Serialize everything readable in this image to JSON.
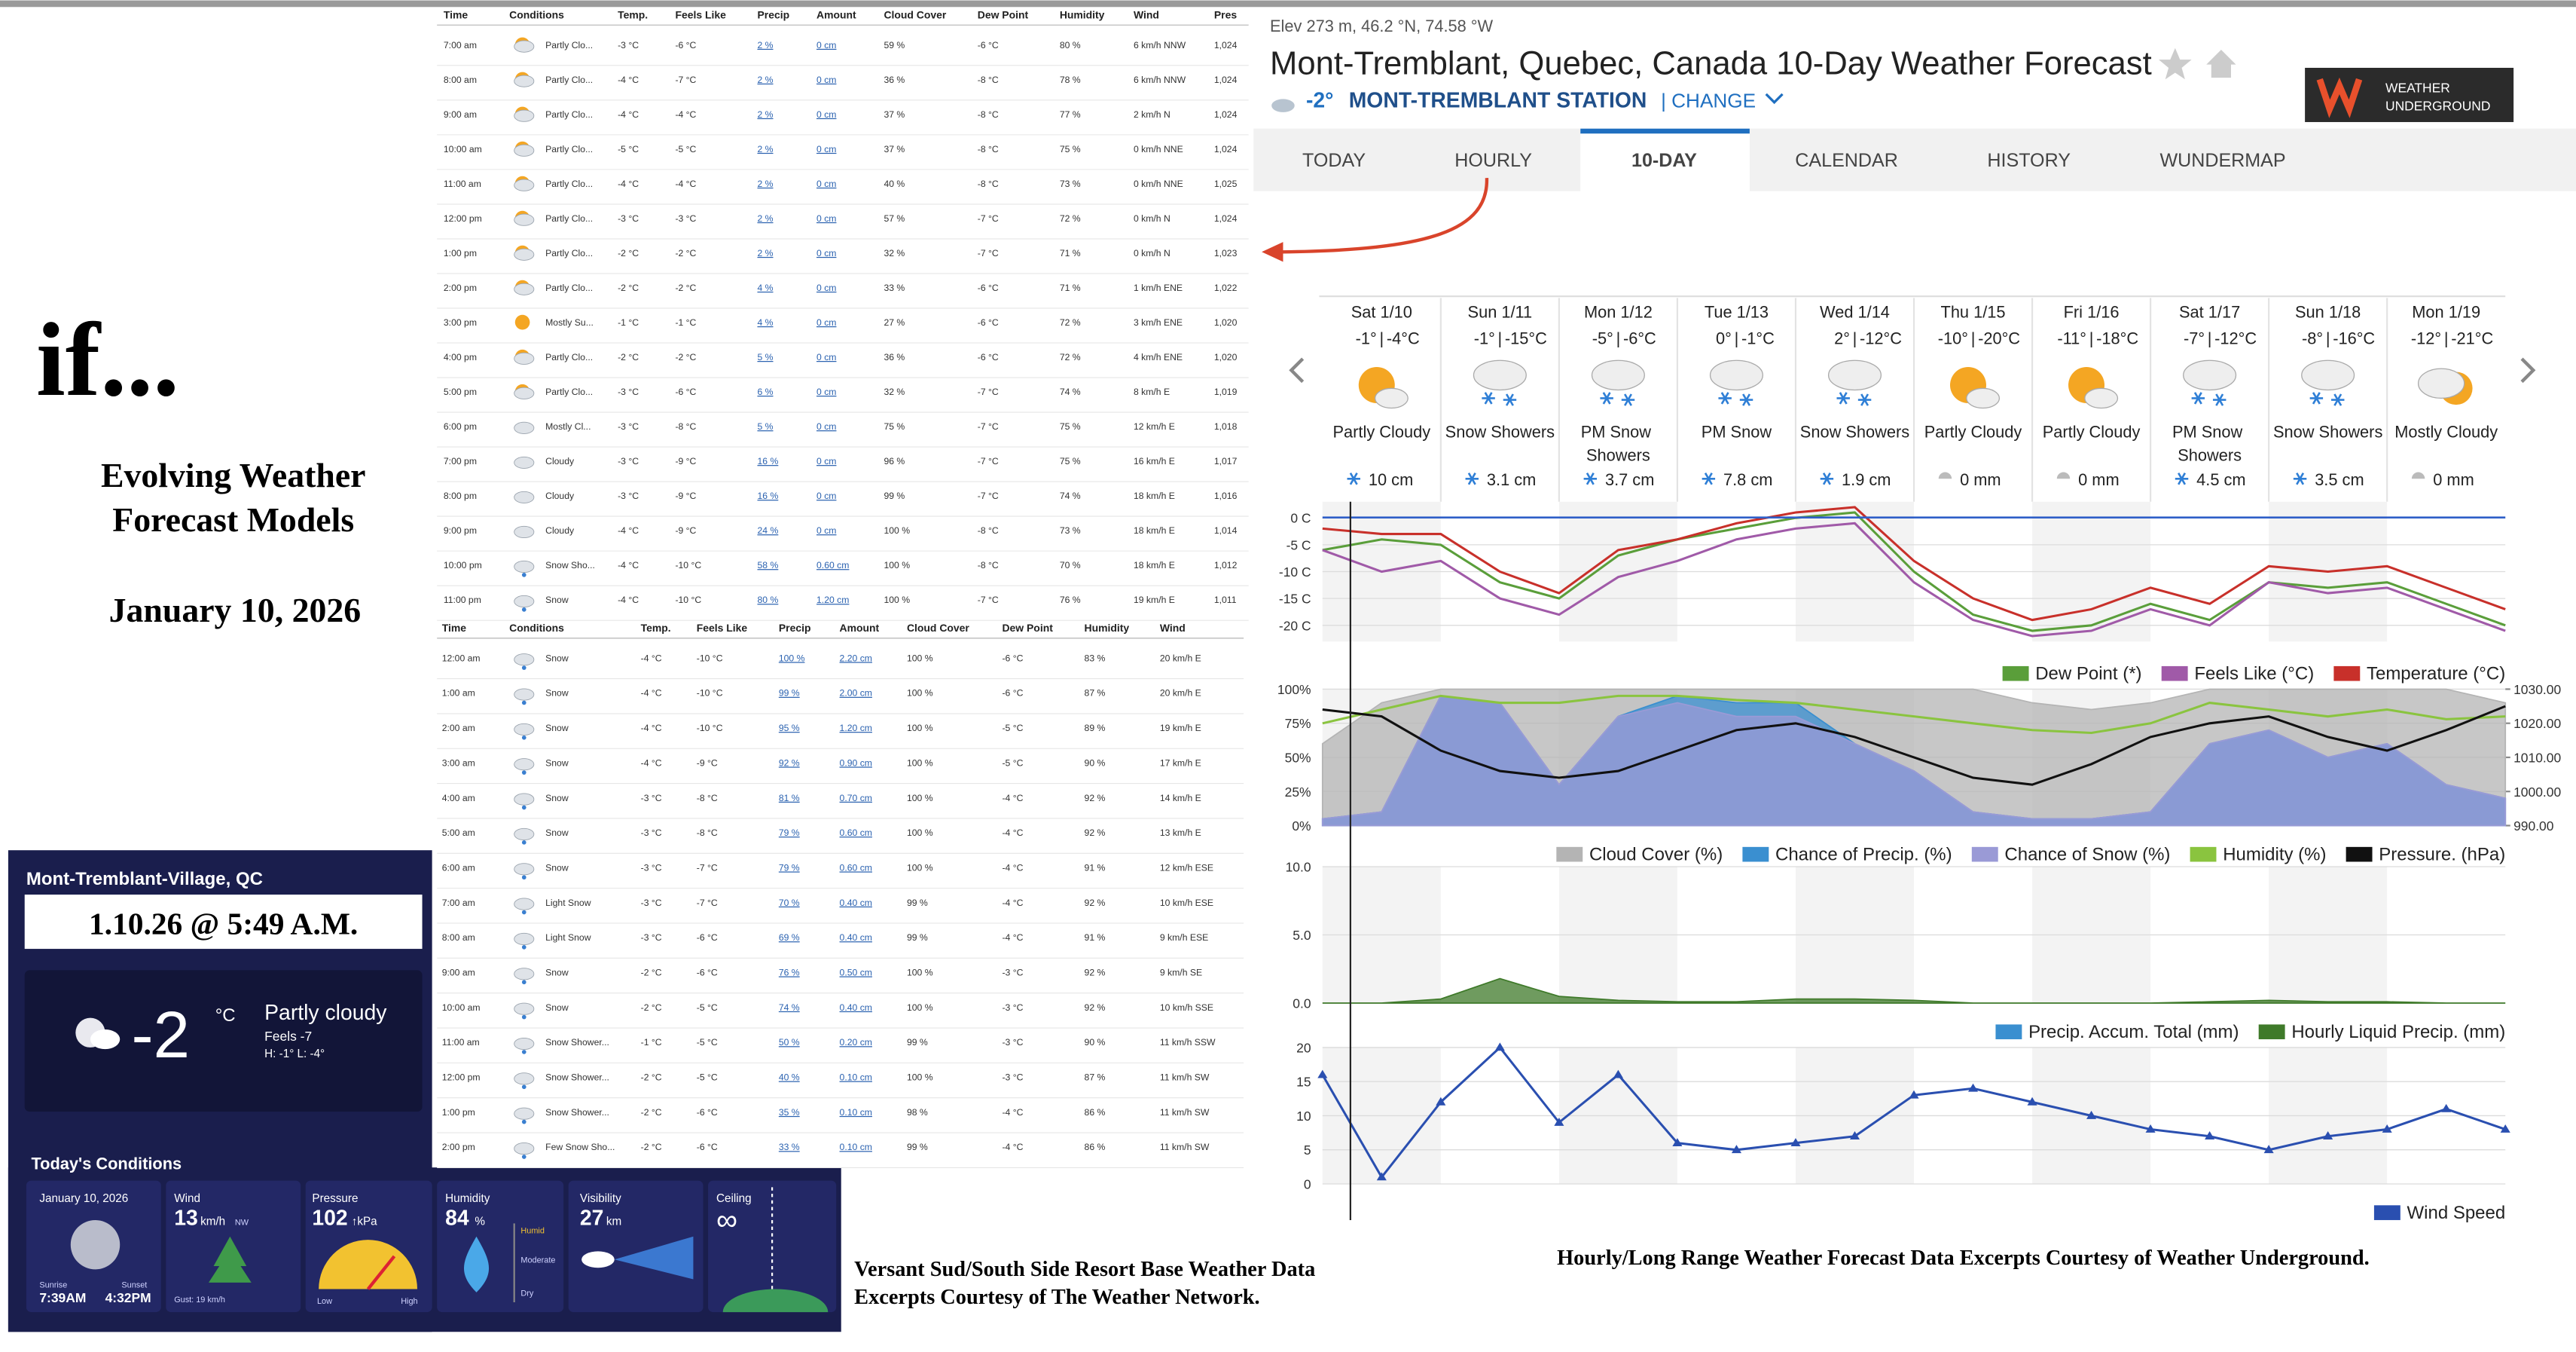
{
  "intro": {
    "title": "if...",
    "subtitle": [
      "Evolving Weather",
      "Forecast Models"
    ],
    "date": "January 10, 2026"
  },
  "network": {
    "location": "Mont-Tremblant-Village, QC",
    "timestamp": "1.10.26 @ 5:49 A.M.",
    "temperature": "-2",
    "unit": "°C",
    "condition": "Partly cloudy",
    "feels": "Feels -7",
    "high_low": "H: -1°   L: -4°",
    "conditions_title": "Today's Conditions",
    "cards": [
      {
        "date": "January 10, 2026",
        "sunrise_label": "Sunrise",
        "sunrise": "7:39AM",
        "sunset_label": "Sunset",
        "sunset": "4:32PM"
      },
      {
        "label": "Wind",
        "value": "13",
        "unit": "km/h",
        "direction": "NW",
        "gust": "Gust: 19 km/h"
      },
      {
        "label": "Pressure",
        "value": "102",
        "unit": "↑kPa",
        "low": "Low",
        "high": "High"
      },
      {
        "label": "Humidity",
        "value": "84",
        "unit": "%",
        "levels": [
          "Humid",
          "Moderate",
          "Dry"
        ]
      },
      {
        "label": "Visibility",
        "value": "27",
        "unit": "km"
      },
      {
        "label": "Ceiling",
        "value": "∞"
      }
    ]
  },
  "captions": {
    "network": [
      "Versant Sud/South Side Resort Base Weather Data",
      "Excerpts Courtesy of The Weather Network."
    ],
    "wu": "Hourly/Long Range Weather Forecast Data Excerpts Courtesy of Weather Underground."
  },
  "hourly_table": {
    "header": [
      "Time",
      "Conditions",
      "Temp.",
      "Feels Like",
      "Precip",
      "Amount",
      "Cloud Cover",
      "Dew Point",
      "Humidity",
      "Wind",
      "Pres"
    ],
    "rows": [
      [
        "7:00 am",
        "Partly Clo...",
        "-3 °C",
        "-6 °C",
        "2 %",
        "0 cm",
        "59 %",
        "-6 °C",
        "80 %",
        "6 km/h NNW",
        "1,024"
      ],
      [
        "8:00 am",
        "Partly Clo...",
        "-4 °C",
        "-7 °C",
        "2 %",
        "0 cm",
        "36 %",
        "-8 °C",
        "78 %",
        "6 km/h NNW",
        "1,024"
      ],
      [
        "9:00 am",
        "Partly Clo...",
        "-4 °C",
        "-4 °C",
        "2 %",
        "0 cm",
        "37 %",
        "-8 °C",
        "77 %",
        "2 km/h N",
        "1,024"
      ],
      [
        "10:00 am",
        "Partly Clo...",
        "-5 °C",
        "-5 °C",
        "2 %",
        "0 cm",
        "37 %",
        "-8 °C",
        "75 %",
        "0 km/h NNE",
        "1,024"
      ],
      [
        "11:00 am",
        "Partly Clo...",
        "-4 °C",
        "-4 °C",
        "2 %",
        "0 cm",
        "40 %",
        "-8 °C",
        "73 %",
        "0 km/h NNE",
        "1,025"
      ],
      [
        "12:00 pm",
        "Partly Clo...",
        "-3 °C",
        "-3 °C",
        "2 %",
        "0 cm",
        "57 %",
        "-7 °C",
        "72 %",
        "0 km/h N",
        "1,024"
      ],
      [
        "1:00 pm",
        "Partly Clo...",
        "-2 °C",
        "-2 °C",
        "2 %",
        "0 cm",
        "32 %",
        "-7 °C",
        "71 %",
        "0 km/h N",
        "1,023"
      ],
      [
        "2:00 pm",
        "Partly Clo...",
        "-2 °C",
        "-2 °C",
        "4 %",
        "0 cm",
        "33 %",
        "-6 °C",
        "71 %",
        "1 km/h ENE",
        "1,022"
      ],
      [
        "3:00 pm",
        "Mostly Su...",
        "-1 °C",
        "-1 °C",
        "4 %",
        "0 cm",
        "27 %",
        "-6 °C",
        "72 %",
        "3 km/h ENE",
        "1,020"
      ],
      [
        "4:00 pm",
        "Partly Clo...",
        "-2 °C",
        "-2 °C",
        "5 %",
        "0 cm",
        "36 %",
        "-6 °C",
        "72 %",
        "4 km/h ENE",
        "1,020"
      ],
      [
        "5:00 pm",
        "Partly Clo...",
        "-3 °C",
        "-6 °C",
        "6 %",
        "0 cm",
        "32 %",
        "-7 °C",
        "74 %",
        "8 km/h E",
        "1,019"
      ],
      [
        "6:00 pm",
        "Mostly Cl...",
        "-3 °C",
        "-8 °C",
        "5 %",
        "0 cm",
        "75 %",
        "-7 °C",
        "75 %",
        "12 km/h E",
        "1,018"
      ],
      [
        "7:00 pm",
        "Cloudy",
        "-3 °C",
        "-9 °C",
        "16 %",
        "0 cm",
        "96 %",
        "-7 °C",
        "75 %",
        "16 km/h E",
        "1,017"
      ],
      [
        "8:00 pm",
        "Cloudy",
        "-3 °C",
        "-9 °C",
        "16 %",
        "0 cm",
        "99 %",
        "-7 °C",
        "74 %",
        "18 km/h E",
        "1,016"
      ],
      [
        "9:00 pm",
        "Cloudy",
        "-4 °C",
        "-9 °C",
        "24 %",
        "0 cm",
        "100 %",
        "-8 °C",
        "73 %",
        "18 km/h E",
        "1,014"
      ],
      [
        "10:00 pm",
        "Snow Sho...",
        "-4 °C",
        "-10 °C",
        "58 %",
        "0.60 cm",
        "100 %",
        "-8 °C",
        "70 %",
        "18 km/h E",
        "1,012"
      ],
      [
        "11:00 pm",
        "Snow",
        "-4 °C",
        "-10 °C",
        "80 %",
        "1.20 cm",
        "100 %",
        "-7 °C",
        "76 %",
        "19 km/h E",
        "1,011"
      ]
    ]
  },
  "hourly_table_2": {
    "header": [
      "Time",
      "Conditions",
      "Temp.",
      "Feels Like",
      "Precip",
      "Amount",
      "Cloud Cover",
      "Dew Point",
      "Humidity",
      "Wind"
    ],
    "rows": [
      [
        "12:00 am",
        "Snow",
        "-4 °C",
        "-10 °C",
        "100 %",
        "2.20 cm",
        "100 %",
        "-6 °C",
        "83 %",
        "20 km/h E"
      ],
      [
        "1:00 am",
        "Snow",
        "-4 °C",
        "-10 °C",
        "99 %",
        "2.00 cm",
        "100 %",
        "-6 °C",
        "87 %",
        "20 km/h E"
      ],
      [
        "2:00 am",
        "Snow",
        "-4 °C",
        "-10 °C",
        "95 %",
        "1.20 cm",
        "100 %",
        "-5 °C",
        "89 %",
        "19 km/h E"
      ],
      [
        "3:00 am",
        "Snow",
        "-4 °C",
        "-9 °C",
        "92 %",
        "0.90 cm",
        "100 %",
        "-5 °C",
        "90 %",
        "17 km/h E"
      ],
      [
        "4:00 am",
        "Snow",
        "-3 °C",
        "-8 °C",
        "81 %",
        "0.70 cm",
        "100 %",
        "-4 °C",
        "92 %",
        "14 km/h E"
      ],
      [
        "5:00 am",
        "Snow",
        "-3 °C",
        "-8 °C",
        "79 %",
        "0.60 cm",
        "100 %",
        "-4 °C",
        "92 %",
        "13 km/h E"
      ],
      [
        "6:00 am",
        "Snow",
        "-3 °C",
        "-7 °C",
        "79 %",
        "0.60 cm",
        "100 %",
        "-4 °C",
        "91 %",
        "12 km/h ESE"
      ],
      [
        "7:00 am",
        "Light Snow",
        "-3 °C",
        "-7 °C",
        "70 %",
        "0.40 cm",
        "99 %",
        "-4 °C",
        "92 %",
        "10 km/h ESE"
      ],
      [
        "8:00 am",
        "Light Snow",
        "-3 °C",
        "-6 °C",
        "69 %",
        "0.40 cm",
        "99 %",
        "-4 °C",
        "91 %",
        "9 km/h ESE"
      ],
      [
        "9:00 am",
        "Snow",
        "-2 °C",
        "-6 °C",
        "76 %",
        "0.50 cm",
        "100 %",
        "-3 °C",
        "92 %",
        "9 km/h SE"
      ],
      [
        "10:00 am",
        "Snow",
        "-2 °C",
        "-5 °C",
        "74 %",
        "0.40 cm",
        "100 %",
        "-3 °C",
        "92 %",
        "10 km/h SSE"
      ],
      [
        "11:00 am",
        "Snow Shower...",
        "-1 °C",
        "-5 °C",
        "50 %",
        "0.20 cm",
        "99 %",
        "-3 °C",
        "90 %",
        "11 km/h SSW"
      ],
      [
        "12:00 pm",
        "Snow Shower...",
        "-2 °C",
        "-5 °C",
        "40 %",
        "0.10 cm",
        "100 %",
        "-3 °C",
        "87 %",
        "11 km/h SW"
      ],
      [
        "1:00 pm",
        "Snow Shower...",
        "-2 °C",
        "-6 °C",
        "35 %",
        "0.10 cm",
        "98 %",
        "-4 °C",
        "86 %",
        "11 km/h SW"
      ],
      [
        "2:00 pm",
        "Few Snow Sho...",
        "-2 °C",
        "-6 °C",
        "33 %",
        "0.10 cm",
        "99 %",
        "-4 °C",
        "86 %",
        "11 km/h SW"
      ]
    ]
  },
  "wu": {
    "location_line": "Elev 273 m, 46.2 °N, 74.58 °W",
    "title": "Mont-Tremblant, Quebec, Canada 10-Day Weather Forecast",
    "current_temp": "-2°",
    "station": "MONT-TREMBLANT STATION",
    "change": "| CHANGE",
    "logo": [
      "WEATHER",
      "UNDERGROUND"
    ],
    "tabs": [
      "TODAY",
      "HOURLY",
      "10-DAY",
      "CALENDAR",
      "HISTORY",
      "WUNDERMAP"
    ],
    "selected_tab": 2,
    "days": [
      {
        "date": "Sat 1/10",
        "high": "-1°",
        "low": "-4°C",
        "condition": "Partly Cloudy",
        "precip": "10 cm"
      },
      {
        "date": "Sun 1/11",
        "high": "-1°",
        "low": "-15°C",
        "condition": "Snow Showers",
        "precip": "3.1 cm"
      },
      {
        "date": "Mon 1/12",
        "high": "-5°",
        "low": "-6°C",
        "condition": "PM Snow Showers",
        "precip": "3.7 cm"
      },
      {
        "date": "Tue 1/13",
        "high": "0°",
        "low": "-1°C",
        "condition": "PM Snow",
        "precip": "7.8 cm"
      },
      {
        "date": "Wed 1/14",
        "high": "2°",
        "low": "-12°C",
        "condition": "Snow Showers",
        "precip": "1.9 cm"
      },
      {
        "date": "Thu 1/15",
        "high": "-10°",
        "low": "-20°C",
        "condition": "Partly Cloudy",
        "precip": "0 mm"
      },
      {
        "date": "Fri 1/16",
        "high": "-11°",
        "low": "-18°C",
        "condition": "Partly Cloudy",
        "precip": "0 mm"
      },
      {
        "date": "Sat 1/17",
        "high": "-7°",
        "low": "-12°C",
        "condition": "PM Snow Showers",
        "precip": "4.5 cm"
      },
      {
        "date": "Sun 1/18",
        "high": "-8°",
        "low": "-16°C",
        "condition": "Snow Showers",
        "precip": "3.5 cm"
      },
      {
        "date": "Mon 1/19",
        "high": "-12°",
        "low": "-21°C",
        "condition": "Mostly Cloudy",
        "precip": "0 mm"
      }
    ]
  },
  "chart_data": [
    {
      "type": "line",
      "grid": true,
      "ylim": [
        -23,
        3
      ],
      "yticks": [
        {
          "value": 0,
          "label": "0 C"
        },
        {
          "value": -5,
          "label": "-5 C"
        },
        {
          "value": -10,
          "label": "-10 C"
        },
        {
          "value": -15,
          "label": "-15 C"
        },
        {
          "value": -20,
          "label": "-20 C"
        }
      ],
      "series": [
        {
          "name": "Dew Point (*)",
          "color": "#5a9e3a",
          "style": "line",
          "values": [
            -6,
            -4,
            -5,
            -12,
            -15,
            -7,
            -4,
            -2,
            0,
            1,
            -10,
            -18,
            -21,
            -20,
            -16,
            -19,
            -12,
            -13,
            -12,
            -16,
            -20
          ]
        },
        {
          "name": "Feels Like (°C)",
          "color": "#a05aa8",
          "style": "line",
          "values": [
            -6,
            -10,
            -8,
            -15,
            -18,
            -11,
            -8,
            -4,
            -2,
            -1,
            -12,
            -19,
            -22,
            -21,
            -17,
            -20,
            -12,
            -14,
            -13,
            -17,
            -21
          ]
        },
        {
          "name": "Temperature (°C)",
          "color": "#c8302a",
          "style": "line",
          "values": [
            -2,
            -3,
            -3,
            -10,
            -14,
            -6,
            -4,
            -1,
            1,
            2,
            -8,
            -15,
            -19,
            -17,
            -13,
            -16,
            -9,
            -10,
            -9,
            -13,
            -17
          ]
        }
      ]
    },
    {
      "type": "line",
      "grid": true,
      "ylim": [
        0,
        100
      ],
      "yticks": [
        {
          "value": 0,
          "label": "0%"
        },
        {
          "value": 25,
          "label": "25%"
        },
        {
          "value": 50,
          "label": "50%"
        },
        {
          "value": 75,
          "label": "75%"
        },
        {
          "value": 100,
          "label": "100%"
        }
      ],
      "y2lim": [
        990,
        1030
      ],
      "y2ticks": [
        {
          "value": 990,
          "label": "990.00"
        },
        {
          "value": 1000,
          "label": "1000.00"
        },
        {
          "value": 1010,
          "label": "1010.00"
        },
        {
          "value": 1020,
          "label": "1020.00"
        },
        {
          "value": 1030,
          "label": "1030.00"
        }
      ],
      "series": [
        {
          "name": "Cloud Cover (%)",
          "color": "#b4b4b4",
          "style": "area",
          "values": [
            60,
            90,
            100,
            100,
            100,
            100,
            100,
            100,
            100,
            100,
            100,
            100,
            90,
            85,
            90,
            100,
            100,
            100,
            100,
            100,
            90
          ]
        },
        {
          "name": "Chance of Precip. (%)",
          "color": "#3a8fd0",
          "style": "area",
          "values": [
            5,
            10,
            95,
            90,
            30,
            80,
            95,
            90,
            90,
            60,
            40,
            10,
            5,
            5,
            10,
            60,
            70,
            50,
            60,
            30,
            20
          ]
        },
        {
          "name": "Chance of Snow (%)",
          "color": "#9a9ad6",
          "style": "area",
          "values": [
            5,
            10,
            95,
            90,
            30,
            80,
            90,
            80,
            80,
            60,
            40,
            10,
            5,
            5,
            10,
            60,
            70,
            50,
            60,
            30,
            20
          ]
        },
        {
          "name": "Humidity (%)",
          "color": "#8ac43f",
          "style": "line",
          "values": [
            75,
            85,
            95,
            90,
            90,
            95,
            95,
            92,
            90,
            85,
            80,
            75,
            70,
            68,
            75,
            90,
            85,
            80,
            85,
            78,
            80
          ]
        },
        {
          "name": "Pressure. (hPa)",
          "color": "#111111",
          "style": "line",
          "axis": "y2",
          "values": [
            1024,
            1022,
            1012,
            1006,
            1004,
            1006,
            1012,
            1018,
            1020,
            1016,
            1010,
            1004,
            1002,
            1008,
            1016,
            1020,
            1022,
            1016,
            1012,
            1018,
            1025
          ]
        }
      ]
    },
    {
      "type": "line",
      "grid": true,
      "ylim": [
        0,
        10
      ],
      "yticks": [
        {
          "value": 0,
          "label": "0.0"
        },
        {
          "value": 5,
          "label": "5.0"
        },
        {
          "value": 10,
          "label": "10.0"
        }
      ],
      "series": [
        {
          "name": "Precip. Accum. Total (mm)",
          "color": "#3a8fd0",
          "style": "line",
          "values": [
            null,
            null,
            null,
            null,
            null,
            null,
            null,
            null,
            null,
            null,
            null,
            null,
            null,
            null,
            null,
            null,
            null,
            null,
            null,
            null,
            null
          ]
        },
        {
          "name": "Hourly Liquid Precip. (mm)",
          "color": "#3f7a2a",
          "style": "area",
          "values": [
            0,
            0,
            0.3,
            1.8,
            0.5,
            0.2,
            0.1,
            0.1,
            0.3,
            0.3,
            0.2,
            0,
            0,
            0,
            0,
            0.1,
            0.2,
            0.1,
            0.1,
            0,
            0
          ]
        }
      ]
    },
    {
      "type": "line",
      "grid": true,
      "ylim": [
        0,
        20
      ],
      "yticks": [
        0,
        5,
        10,
        15,
        20
      ],
      "series": [
        {
          "name": "Wind Speed",
          "color": "#2a4fb0",
          "style": "line",
          "markers": true,
          "values": [
            16,
            1,
            12,
            20,
            9,
            16,
            6,
            5,
            6,
            7,
            13,
            14,
            12,
            10,
            8,
            7,
            5,
            7,
            8,
            11,
            8
          ]
        }
      ]
    }
  ]
}
